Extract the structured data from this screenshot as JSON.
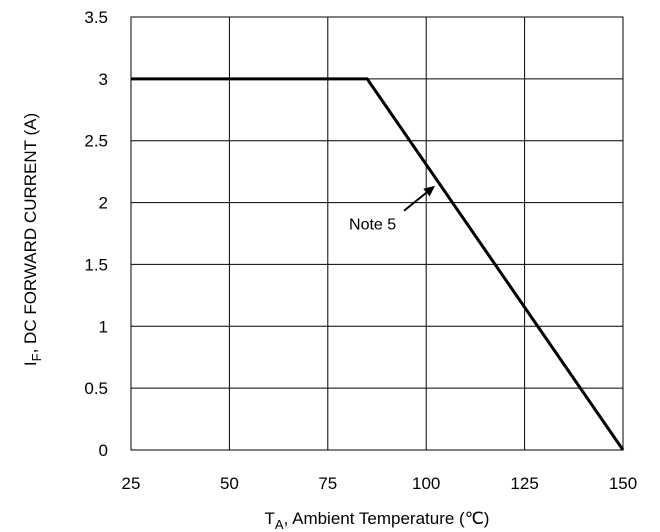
{
  "chart_data": {
    "type": "line",
    "xlabel_main": "T",
    "xlabel_sub": "A",
    "xlabel_rest": ", Ambient Temperature (℃)",
    "ylabel_main": "I",
    "ylabel_sub": "F",
    "ylabel_rest": ", DC FORWARD CURRENT (A)",
    "xlim": [
      25,
      150
    ],
    "ylim": [
      0,
      3.5
    ],
    "x_ticks": [
      "25",
      "50",
      "75",
      "100",
      "125",
      "150"
    ],
    "y_ticks": [
      "0",
      "0.5",
      "1",
      "1.5",
      "2",
      "2.5",
      "3",
      "3.5"
    ],
    "grid": true,
    "series": [
      {
        "x": [
          25,
          85,
          150
        ],
        "y": [
          3,
          3,
          0
        ],
        "color": "#000000"
      }
    ],
    "annotations": [
      {
        "text": "Note 5",
        "point_x": 102.5,
        "point_y": 2.12
      }
    ]
  }
}
